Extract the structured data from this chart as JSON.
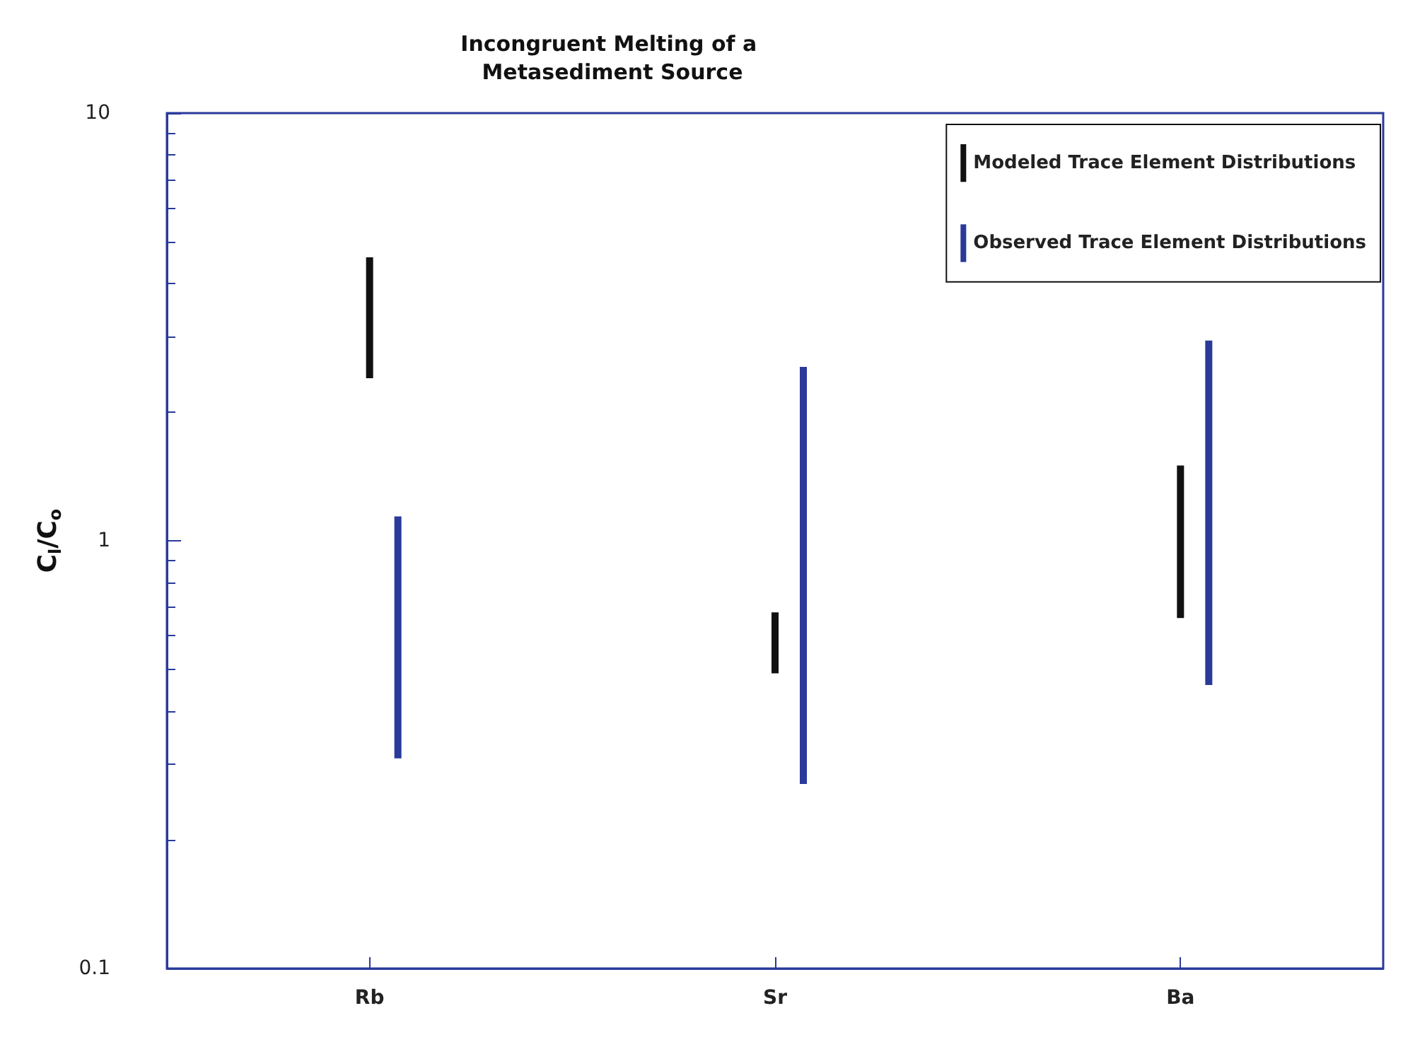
{
  "chart_data": {
    "type": "bar",
    "title": "Incongruent Melting of a Metasediment Source",
    "ylabel": "C$_{l}$/C$_{o}$",
    "categories": [
      "Rb",
      "Sr",
      "Ba"
    ],
    "series": [
      {
        "name": "Modeled Trace Element Distributions",
        "color": "#111111",
        "base": [
          2.4,
          0.49,
          0.66
        ],
        "values": [
          2.2,
          0.19,
          0.84
        ]
      },
      {
        "name": "Observed Trace Element Distributions",
        "color": "#2a3a9a",
        "base": [
          0.31,
          0.27,
          0.46
        ],
        "values": [
          0.83,
          2.28,
          2.48
        ]
      }
    ],
    "log": "y",
    "ylim": [
      0.1,
      10
    ],
    "yticks": [
      0.1,
      1,
      10
    ],
    "grid": false,
    "legend": "top right"
  }
}
